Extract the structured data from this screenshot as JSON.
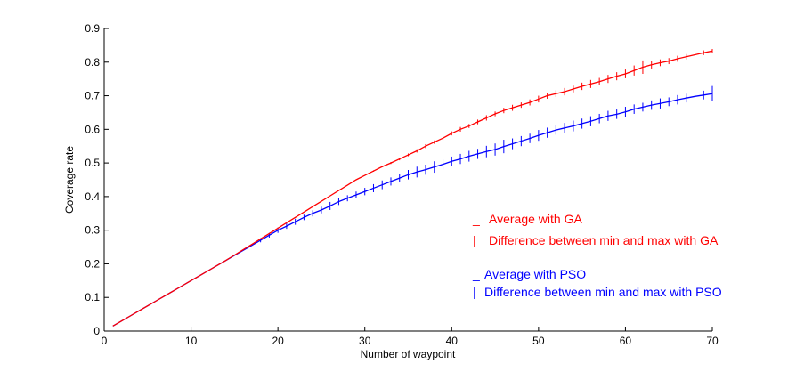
{
  "chart_data": {
    "type": "line",
    "xlabel": "Number of waypoint",
    "ylabel": "Coverage rate",
    "xlim": [
      0,
      70
    ],
    "ylim": [
      0,
      0.9
    ],
    "xticks": [
      0,
      10,
      20,
      30,
      40,
      50,
      60,
      70
    ],
    "xtick_labels": [
      "0",
      "10",
      "20",
      "30",
      "40",
      "50",
      "60",
      "70"
    ],
    "yticks": [
      0,
      0.1,
      0.2,
      0.3,
      0.4,
      0.5,
      0.6,
      0.7,
      0.8,
      0.9
    ],
    "ytick_labels": [
      "0",
      "0.1",
      "0.2",
      "0.3",
      "0.4",
      "0.5",
      "0.6",
      "0.7",
      "0.8",
      "0.9"
    ],
    "grid": false,
    "legend_position": "right",
    "x": [
      1,
      2,
      3,
      4,
      5,
      6,
      7,
      8,
      9,
      10,
      11,
      12,
      13,
      14,
      15,
      16,
      17,
      18,
      19,
      20,
      21,
      22,
      23,
      24,
      25,
      26,
      27,
      28,
      29,
      30,
      31,
      32,
      33,
      34,
      35,
      36,
      37,
      38,
      39,
      40,
      41,
      42,
      43,
      44,
      45,
      46,
      47,
      48,
      49,
      50,
      51,
      52,
      53,
      54,
      55,
      56,
      57,
      58,
      59,
      60,
      61,
      62,
      63,
      64,
      65,
      66,
      67,
      68,
      69,
      70
    ],
    "series": [
      {
        "name": "Average with GA",
        "error_name": "Difference between min  and max with GA",
        "color": "#ff0000",
        "values": [
          0.015,
          0.03,
          0.045,
          0.06,
          0.075,
          0.09,
          0.105,
          0.12,
          0.135,
          0.15,
          0.165,
          0.18,
          0.195,
          0.21,
          0.226,
          0.242,
          0.258,
          0.274,
          0.29,
          0.306,
          0.322,
          0.338,
          0.354,
          0.37,
          0.386,
          0.402,
          0.418,
          0.434,
          0.45,
          0.463,
          0.476,
          0.489,
          0.5,
          0.512,
          0.524,
          0.536,
          0.55,
          0.562,
          0.574,
          0.588,
          0.6,
          0.61,
          0.622,
          0.634,
          0.646,
          0.656,
          0.664,
          0.672,
          0.68,
          0.69,
          0.7,
          0.706,
          0.712,
          0.72,
          0.728,
          0.735,
          0.742,
          0.75,
          0.758,
          0.765,
          0.775,
          0.785,
          0.792,
          0.798,
          0.803,
          0.81,
          0.816,
          0.822,
          0.828,
          0.833
        ],
        "spread": [
          0,
          0,
          0,
          0,
          0,
          0,
          0,
          0,
          0,
          0,
          0,
          0,
          0,
          0,
          0,
          0,
          0,
          0,
          0,
          0,
          0,
          0,
          0,
          0,
          0,
          0,
          0,
          0,
          0,
          0,
          0.004,
          0.004,
          0.006,
          0.008,
          0.008,
          0.01,
          0.012,
          0.01,
          0.012,
          0.012,
          0.014,
          0.012,
          0.014,
          0.016,
          0.014,
          0.016,
          0.018,
          0.016,
          0.018,
          0.02,
          0.018,
          0.02,
          0.022,
          0.02,
          0.022,
          0.024,
          0.022,
          0.024,
          0.024,
          0.026,
          0.03,
          0.04,
          0.022,
          0.02,
          0.018,
          0.018,
          0.016,
          0.016,
          0.014,
          0.012
        ]
      },
      {
        "name": "Average with PSO",
        "error_name": "Difference between min and max with PSO",
        "color": "#0000ff",
        "values": [
          0.015,
          0.03,
          0.045,
          0.06,
          0.075,
          0.09,
          0.105,
          0.12,
          0.135,
          0.15,
          0.165,
          0.18,
          0.195,
          0.21,
          0.225,
          0.24,
          0.255,
          0.27,
          0.285,
          0.3,
          0.312,
          0.325,
          0.338,
          0.35,
          0.36,
          0.372,
          0.385,
          0.395,
          0.405,
          0.415,
          0.425,
          0.435,
          0.445,
          0.455,
          0.465,
          0.473,
          0.48,
          0.488,
          0.496,
          0.505,
          0.512,
          0.52,
          0.527,
          0.534,
          0.54,
          0.549,
          0.557,
          0.565,
          0.573,
          0.582,
          0.59,
          0.598,
          0.604,
          0.61,
          0.617,
          0.624,
          0.632,
          0.64,
          0.645,
          0.652,
          0.66,
          0.666,
          0.672,
          0.677,
          0.682,
          0.688,
          0.693,
          0.698,
          0.702,
          0.706
        ],
        "spread": [
          0,
          0,
          0,
          0,
          0,
          0,
          0,
          0,
          0,
          0,
          0,
          0,
          0,
          0,
          0,
          0,
          0,
          0.012,
          0.014,
          0.016,
          0.016,
          0.018,
          0.016,
          0.018,
          0.02,
          0.024,
          0.02,
          0.018,
          0.02,
          0.022,
          0.024,
          0.026,
          0.024,
          0.026,
          0.028,
          0.032,
          0.03,
          0.034,
          0.03,
          0.028,
          0.03,
          0.032,
          0.03,
          0.034,
          0.036,
          0.04,
          0.032,
          0.03,
          0.028,
          0.032,
          0.03,
          0.028,
          0.03,
          0.032,
          0.03,
          0.03,
          0.028,
          0.03,
          0.028,
          0.03,
          0.028,
          0.026,
          0.028,
          0.03,
          0.026,
          0.028,
          0.026,
          0.028,
          0.026,
          0.046
        ]
      }
    ],
    "legend": [
      {
        "marker": "_",
        "label": "Average with GA",
        "color": "#ff0000"
      },
      {
        "marker": "|",
        "label": "Difference between min  and max with GA",
        "color": "#ff0000"
      },
      {
        "marker": "_",
        "label": "Average with PSO",
        "color": "#0000ff"
      },
      {
        "marker": "|",
        "label": "Difference between min and max with PSO",
        "color": "#0000ff"
      }
    ]
  }
}
